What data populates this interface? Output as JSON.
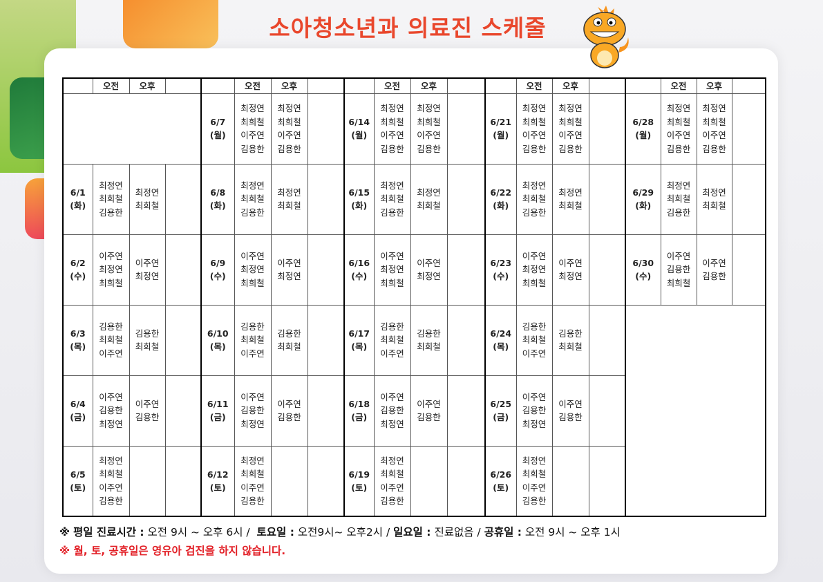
{
  "title": "소아청소년과 의료진 스케줄",
  "colors": {
    "title": "#e9472c",
    "notice": "#e21f26"
  },
  "header": {
    "am": "오전",
    "pm": "오후"
  },
  "weeks": [
    {
      "days": [
        null,
        {
          "date": "6/1",
          "dow": "(화)",
          "am": [
            "최정연",
            "최희철",
            "김용한"
          ],
          "pm": [
            "최정연",
            "최희철"
          ]
        },
        {
          "date": "6/2",
          "dow": "(수)",
          "am": [
            "이주연",
            "최정연",
            "최희철"
          ],
          "pm": [
            "이주연",
            "최정연"
          ]
        },
        {
          "date": "6/3",
          "dow": "(목)",
          "am": [
            "김용한",
            "최희철",
            "이주연"
          ],
          "pm": [
            "김용한",
            "최희철"
          ]
        },
        {
          "date": "6/4",
          "dow": "(금)",
          "am": [
            "이주연",
            "김용한",
            "최정연"
          ],
          "pm": [
            "이주연",
            "김용한"
          ]
        },
        {
          "date": "6/5",
          "dow": "(토)",
          "am": [
            "최정연",
            "최희철",
            "이주연",
            "김용한"
          ],
          "pm": []
        }
      ]
    },
    {
      "days": [
        {
          "date": "6/7",
          "dow": "(월)",
          "am": [
            "최정연",
            "최희철",
            "이주연",
            "김용한"
          ],
          "pm": [
            "최정연",
            "최희철",
            "이주연",
            "김용한"
          ]
        },
        {
          "date": "6/8",
          "dow": "(화)",
          "am": [
            "최정연",
            "최희철",
            "김용한"
          ],
          "pm": [
            "최정연",
            "최희철"
          ]
        },
        {
          "date": "6/9",
          "dow": "(수)",
          "am": [
            "이주연",
            "최정연",
            "최희철"
          ],
          "pm": [
            "이주연",
            "최정연"
          ]
        },
        {
          "date": "6/10",
          "dow": "(목)",
          "am": [
            "김용한",
            "최희철",
            "이주연"
          ],
          "pm": [
            "김용한",
            "최희철"
          ]
        },
        {
          "date": "6/11",
          "dow": "(금)",
          "am": [
            "이주연",
            "김용한",
            "최정연"
          ],
          "pm": [
            "이주연",
            "김용한"
          ]
        },
        {
          "date": "6/12",
          "dow": "(토)",
          "am": [
            "최정연",
            "최희철",
            "이주연",
            "김용한"
          ],
          "pm": []
        }
      ]
    },
    {
      "days": [
        {
          "date": "6/14",
          "dow": "(월)",
          "am": [
            "최정연",
            "최희철",
            "이주연",
            "김용한"
          ],
          "pm": [
            "최정연",
            "최희철",
            "이주연",
            "김용한"
          ]
        },
        {
          "date": "6/15",
          "dow": "(화)",
          "am": [
            "최정연",
            "최희철",
            "김용한"
          ],
          "pm": [
            "최정연",
            "최희철"
          ]
        },
        {
          "date": "6/16",
          "dow": "(수)",
          "am": [
            "이주연",
            "최정연",
            "최희철"
          ],
          "pm": [
            "이주연",
            "최정연"
          ]
        },
        {
          "date": "6/17",
          "dow": "(목)",
          "am": [
            "김용한",
            "최희철",
            "이주연"
          ],
          "pm": [
            "김용한",
            "최희철"
          ]
        },
        {
          "date": "6/18",
          "dow": "(금)",
          "am": [
            "이주연",
            "김용한",
            "최정연"
          ],
          "pm": [
            "이주연",
            "김용한"
          ]
        },
        {
          "date": "6/19",
          "dow": "(토)",
          "am": [
            "최정연",
            "최희철",
            "이주연",
            "김용한"
          ],
          "pm": []
        }
      ]
    },
    {
      "days": [
        {
          "date": "6/21",
          "dow": "(월)",
          "am": [
            "최정연",
            "최희철",
            "이주연",
            "김용한"
          ],
          "pm": [
            "최정연",
            "최희철",
            "이주연",
            "김용한"
          ]
        },
        {
          "date": "6/22",
          "dow": "(화)",
          "am": [
            "최정연",
            "최희철",
            "김용한"
          ],
          "pm": [
            "최정연",
            "최희철"
          ]
        },
        {
          "date": "6/23",
          "dow": "(수)",
          "am": [
            "이주연",
            "최정연",
            "최희철"
          ],
          "pm": [
            "이주연",
            "최정연"
          ]
        },
        {
          "date": "6/24",
          "dow": "(목)",
          "am": [
            "김용한",
            "최희철",
            "이주연"
          ],
          "pm": [
            "김용한",
            "최희철"
          ]
        },
        {
          "date": "6/25",
          "dow": "(금)",
          "am": [
            "이주연",
            "김용한",
            "최정연"
          ],
          "pm": [
            "이주연",
            "김용한"
          ]
        },
        {
          "date": "6/26",
          "dow": "(토)",
          "am": [
            "최정연",
            "최희철",
            "이주연",
            "김용한"
          ],
          "pm": []
        }
      ]
    },
    {
      "days": [
        {
          "date": "6/28",
          "dow": "(월)",
          "am": [
            "최정연",
            "최희철",
            "이주연",
            "김용한"
          ],
          "pm": [
            "최정연",
            "최희철",
            "이주연",
            "김용한"
          ]
        },
        {
          "date": "6/29",
          "dow": "(화)",
          "am": [
            "최정연",
            "최희철",
            "김용한"
          ],
          "pm": [
            "최정연",
            "최희철"
          ]
        },
        {
          "date": "6/30",
          "dow": "(수)",
          "am": [
            "이주연",
            "김용한",
            "최희철"
          ],
          "pm": [
            "이주연",
            "김용한"
          ]
        },
        null,
        null,
        null
      ]
    }
  ],
  "footer": {
    "mark": "※",
    "weekday_label": "평일 진료시간 :",
    "weekday_hours": "오전 9시 ~ 오후 6시 /",
    "sat_label": "토요일 :",
    "sat_hours": "오전9시~ 오후2시 /",
    "sun_label": "일요일 :",
    "sun_hours": "진료없음 /",
    "holiday_label": "공휴일 :",
    "holiday_hours": "오전 9시 ~ 오후 1시",
    "notice": "※ 월, 토, 공휴일은 영유아 검진을 하지 않습니다."
  }
}
